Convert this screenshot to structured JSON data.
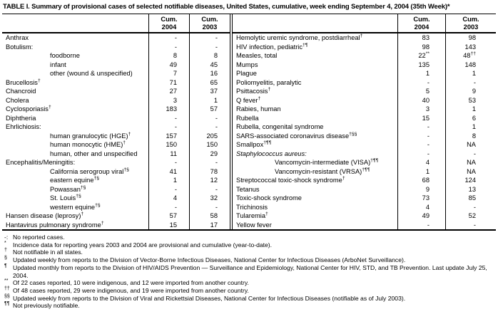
{
  "title": "TABLE I. Summary of provisional cases of selected notifiable diseases, United States, cumulative, week ending September 4, 2004 (35th Week)*",
  "colors": {
    "background": "#ffffff",
    "text": "#000000",
    "rule": "#000000"
  },
  "columns": [
    {
      "l1": "Cum.",
      "l2": "2004"
    },
    {
      "l1": "Cum.",
      "l2": "2003"
    }
  ],
  "left_rows": [
    {
      "label": "Anthrax",
      "v04": "-",
      "v03": "-"
    },
    {
      "label": "Botulism:",
      "v04": "-",
      "v03": "-"
    },
    {
      "label": "foodborne",
      "indent": 1,
      "v04": "8",
      "v03": "8"
    },
    {
      "label": "infant",
      "indent": 1,
      "v04": "49",
      "v03": "45"
    },
    {
      "label": "other (wound & unspecified)",
      "indent": 1,
      "v04": "7",
      "v03": "16"
    },
    {
      "label": "Brucellosis",
      "sup": "†",
      "v04": "71",
      "v03": "65"
    },
    {
      "label": "Chancroid",
      "v04": "27",
      "v03": "37"
    },
    {
      "label": "Cholera",
      "v04": "3",
      "v03": "1"
    },
    {
      "label": "Cyclosporiasis",
      "sup": "†",
      "v04": "183",
      "v03": "57"
    },
    {
      "label": "Diphtheria",
      "v04": "-",
      "v03": "-"
    },
    {
      "label": "Ehrlichiosis:",
      "v04": "-",
      "v03": "-"
    },
    {
      "label": "human granulocytic (HGE)",
      "sup": "†",
      "indent": 1,
      "v04": "157",
      "v03": "205"
    },
    {
      "label": "human monocytic (HME)",
      "sup": "†",
      "indent": 1,
      "v04": "150",
      "v03": "150"
    },
    {
      "label": "human, other and unspecified",
      "indent": 1,
      "v04": "11",
      "v03": "29"
    },
    {
      "label": "Encephalitis/Meningitis:",
      "v04": "-",
      "v03": "-"
    },
    {
      "label": "California serogroup viral",
      "sup": "†§",
      "indent": 1,
      "v04": "41",
      "v03": "78"
    },
    {
      "label": "eastern equine",
      "sup": "†§",
      "indent": 1,
      "v04": "1",
      "v03": "12"
    },
    {
      "label": "Powassan",
      "sup": "†§",
      "indent": 1,
      "v04": "-",
      "v03": "-"
    },
    {
      "label": "St. Louis",
      "sup": "†§",
      "indent": 1,
      "v04": "4",
      "v03": "32"
    },
    {
      "label": "western equine",
      "sup": "†§",
      "indent": 1,
      "v04": "-",
      "v03": "-"
    },
    {
      "label": "Hansen disease (leprosy)",
      "sup": "†",
      "v04": "57",
      "v03": "58"
    },
    {
      "label": "Hantavirus pulmonary syndrome",
      "sup": "†",
      "v04": "15",
      "v03": "17"
    }
  ],
  "right_rows": [
    {
      "label": "Hemolytic uremic syndrome, postdiarrheal",
      "sup": "†",
      "v04": "83",
      "v03": "98"
    },
    {
      "label": "HIV infection, pediatric",
      "sup": "†¶",
      "v04": "98",
      "v03": "143"
    },
    {
      "label": "Measles, total",
      "v04": "22",
      "v04sup": "**",
      "v03": "48",
      "v03sup": "††"
    },
    {
      "label": "Mumps",
      "v04": "135",
      "v03": "148"
    },
    {
      "label": "Plague",
      "v04": "1",
      "v03": "1"
    },
    {
      "label": "Poliomyelitis, paralytic",
      "v04": "-",
      "v03": "-"
    },
    {
      "label": "Psittacosis",
      "sup": "†",
      "v04": "5",
      "v03": "9"
    },
    {
      "label": "Q fever",
      "sup": "†",
      "v04": "40",
      "v03": "53"
    },
    {
      "label": "Rabies, human",
      "v04": "3",
      "v03": "1"
    },
    {
      "label": "Rubella",
      "v04": "15",
      "v03": "6"
    },
    {
      "label": "Rubella, congenital syndrome",
      "v04": "-",
      "v03": "1"
    },
    {
      "label": "SARS-associated coronavirus disease",
      "sup": "†§§",
      "v04": "-",
      "v03": "8"
    },
    {
      "label": "Smallpox",
      "sup": "†¶¶",
      "v04": "-",
      "v03": "NA"
    },
    {
      "label": "Staphylococcus aureus:",
      "italic": true,
      "v04": "-",
      "v03": "-"
    },
    {
      "label": "Vancomycin-intermediate (VISA)",
      "sup": "†¶¶",
      "indent": 1,
      "v04": "4",
      "v03": "NA"
    },
    {
      "label": "Vancomycin-resistant (VRSA)",
      "sup": "†¶¶",
      "indent": 1,
      "v04": "1",
      "v03": "NA"
    },
    {
      "label": "Streptococcal toxic-shock syndrome",
      "sup": "†",
      "v04": "68",
      "v03": "124"
    },
    {
      "label": "Tetanus",
      "v04": "9",
      "v03": "13"
    },
    {
      "label": "Toxic-shock syndrome",
      "v04": "73",
      "v03": "85"
    },
    {
      "label": "Trichinosis",
      "v04": "4",
      "v03": "-"
    },
    {
      "label": "Tularemia",
      "sup": "†",
      "v04": "49",
      "v03": "52"
    },
    {
      "label": "Yellow fever",
      "v04": "-",
      "v03": "-"
    }
  ],
  "footnotes": [
    {
      "marker": "-:",
      "superscript": false,
      "text": "No reported cases."
    },
    {
      "marker": "*",
      "superscript": true,
      "text": "Incidence data for reporting years 2003 and 2004 are provisional and cumulative (year-to-date)."
    },
    {
      "marker": "†",
      "superscript": true,
      "text": "Not notifiable in all states."
    },
    {
      "marker": "§",
      "superscript": true,
      "text": "Updated weekly from reports to the Division of Vector-Borne Infectious Diseases, National Center for Infectious Diseases (ArboNet Surveillance)."
    },
    {
      "marker": "¶",
      "superscript": true,
      "text": "Updated monthly from reports to the Division of HIV/AIDS Prevention — Surveillance and Epidemiology, National Center for HIV, STD, and TB Prevention. Last update July 25, 2004."
    },
    {
      "marker": "**",
      "superscript": true,
      "text": "Of 22 cases reported, 10 were indigenous, and 12 were imported from another country."
    },
    {
      "marker": "††",
      "superscript": true,
      "text": "Of 48 cases reported, 29 were indigenous, and 19 were imported from another country."
    },
    {
      "marker": "§§",
      "superscript": true,
      "text": "Updated weekly from reports to the Division of Viral and Rickettsial Diseases, National Center for Infectious Diseases (notifiable as of July 2003)."
    },
    {
      "marker": "¶¶",
      "superscript": true,
      "text": "Not previously notifiable."
    }
  ]
}
